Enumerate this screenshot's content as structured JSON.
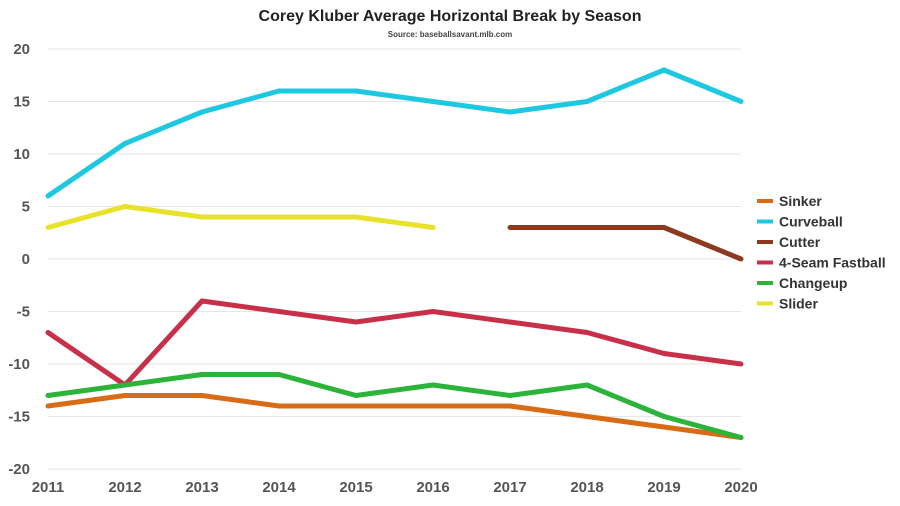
{
  "chart_data": {
    "type": "line",
    "title": "Corey Kluber Average Horizontal Break by Season",
    "subtitle": "Source: baseballsavant.mlb.com",
    "xlabel": "",
    "ylabel": "",
    "x": [
      "2011",
      "2012",
      "2013",
      "2014",
      "2015",
      "2016",
      "2017",
      "2018",
      "2019",
      "2020"
    ],
    "ylim": [
      -20,
      20
    ],
    "yticks": [
      20,
      15,
      10,
      5,
      0,
      -5,
      -10,
      -15,
      -20
    ],
    "grid": true,
    "legend_position": "right",
    "series": [
      {
        "name": "Sinker",
        "color": "#d96b14",
        "values": [
          -14,
          -13,
          -13,
          -14,
          -14,
          -14,
          -14,
          -15,
          -16,
          -17
        ]
      },
      {
        "name": "Curveball",
        "color": "#1ec8e0",
        "values": [
          6,
          11,
          14,
          16,
          16,
          15,
          14,
          15,
          18,
          15
        ]
      },
      {
        "name": "Cutter",
        "color": "#8b3a1e",
        "values": [
          null,
          null,
          null,
          null,
          null,
          null,
          3,
          3,
          3,
          0
        ]
      },
      {
        "name": "4-Seam Fastball",
        "color": "#c8304a",
        "values": [
          -7,
          -12,
          -4,
          -5,
          -6,
          -5,
          -6,
          -7,
          -9,
          -10
        ]
      },
      {
        "name": "Changeup",
        "color": "#2bb33a",
        "values": [
          -13,
          -12,
          -11,
          -11,
          -13,
          -12,
          -13,
          -12,
          -15,
          -17
        ]
      },
      {
        "name": "Slider",
        "color": "#e8e22a",
        "values": [
          3,
          5,
          4,
          4,
          4,
          3,
          null,
          null,
          null,
          null
        ]
      }
    ]
  }
}
